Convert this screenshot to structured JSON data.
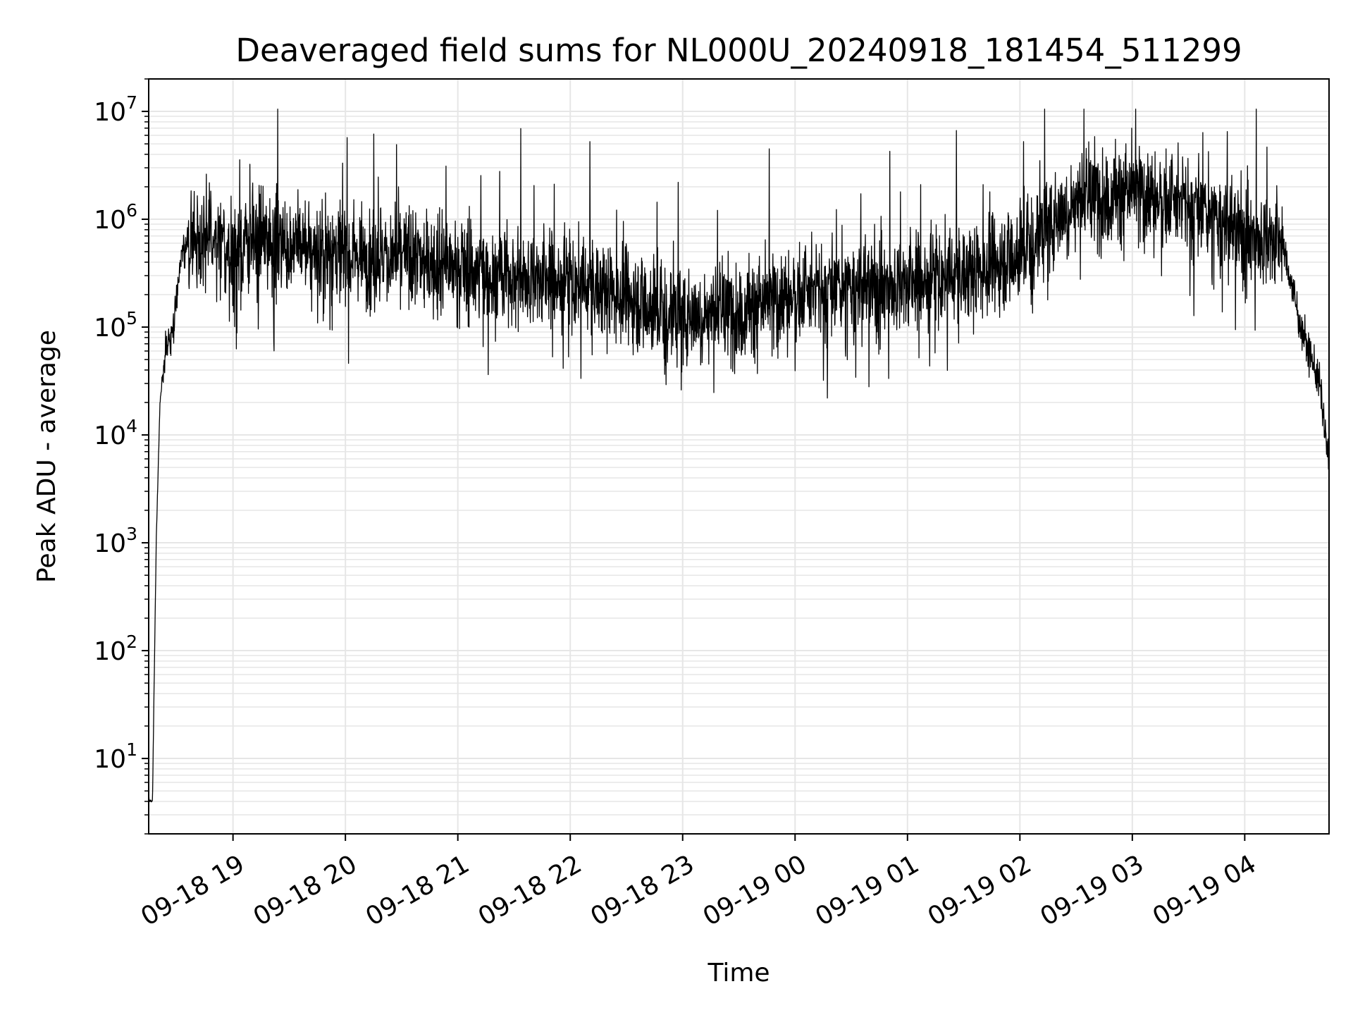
{
  "chart_data": {
    "type": "line",
    "title": "Deaveraged field sums for NL000U_20240918_181454_511299",
    "xlabel": "Time",
    "ylabel": "Peak ADU - average",
    "xlim": [
      "09-18 18:15",
      "09-19 04:45"
    ],
    "ylim": [
      2,
      20000000
    ],
    "yscale": "log",
    "grid": true,
    "line_color": "#000000",
    "grid_color": "#e6e6e6",
    "x_ticks": [
      {
        "time": "09-18 19:00",
        "label": "09-18 19"
      },
      {
        "time": "09-18 20:00",
        "label": "09-18 20"
      },
      {
        "time": "09-18 21:00",
        "label": "09-18 21"
      },
      {
        "time": "09-18 22:00",
        "label": "09-18 22"
      },
      {
        "time": "09-18 23:00",
        "label": "09-18 23"
      },
      {
        "time": "09-19 00:00",
        "label": "09-19 00"
      },
      {
        "time": "09-19 01:00",
        "label": "09-19 01"
      },
      {
        "time": "09-19 02:00",
        "label": "09-19 02"
      },
      {
        "time": "09-19 03:00",
        "label": "09-19 03"
      },
      {
        "time": "09-19 04:00",
        "label": "09-19 04"
      }
    ],
    "y_ticks": [
      {
        "value": 10,
        "base": "10",
        "exp": "1"
      },
      {
        "value": 100,
        "base": "10",
        "exp": "2"
      },
      {
        "value": 1000,
        "base": "10",
        "exp": "3"
      },
      {
        "value": 10000,
        "base": "10",
        "exp": "4"
      },
      {
        "value": 100000,
        "base": "10",
        "exp": "5"
      },
      {
        "value": 1000000,
        "base": "10",
        "exp": "6"
      },
      {
        "value": 10000000,
        "base": "10",
        "exp": "7"
      }
    ],
    "series": [
      {
        "color": "#000000",
        "x": [
          "09-18 18:15",
          "09-18 18:17",
          "09-18 18:19",
          "09-18 18:21",
          "09-18 18:24",
          "09-18 18:28",
          "09-18 18:32",
          "09-18 18:36",
          "09-18 18:40",
          "09-18 18:45",
          "09-18 18:50",
          "09-18 19:00",
          "09-18 19:15",
          "09-18 19:30",
          "09-18 19:45",
          "09-18 20:00",
          "09-18 20:15",
          "09-18 20:30",
          "09-18 20:45",
          "09-18 21:00",
          "09-18 21:30",
          "09-18 22:00",
          "09-18 22:30",
          "09-18 22:45",
          "09-18 23:00",
          "09-18 23:30",
          "09-19 00:00",
          "09-19 00:30",
          "09-19 01:00",
          "09-19 01:30",
          "09-19 02:00",
          "09-19 02:15",
          "09-19 02:30",
          "09-19 03:00",
          "09-19 03:30",
          "09-19 04:00",
          "09-19 04:20",
          "09-19 04:30",
          "09-19 04:40",
          "09-19 04:45"
        ],
        "y": [
          4,
          4,
          1000,
          20000,
          60000,
          100000,
          400000,
          600000,
          700000,
          700000,
          600000,
          500000,
          600000,
          600000,
          500000,
          500000,
          450000,
          450000,
          400000,
          350000,
          300000,
          250000,
          200000,
          150000,
          130000,
          140000,
          200000,
          220000,
          250000,
          300000,
          500000,
          900000,
          1500000,
          1800000,
          1300000,
          700000,
          600000,
          100000,
          30000,
          5000
        ]
      }
    ]
  }
}
